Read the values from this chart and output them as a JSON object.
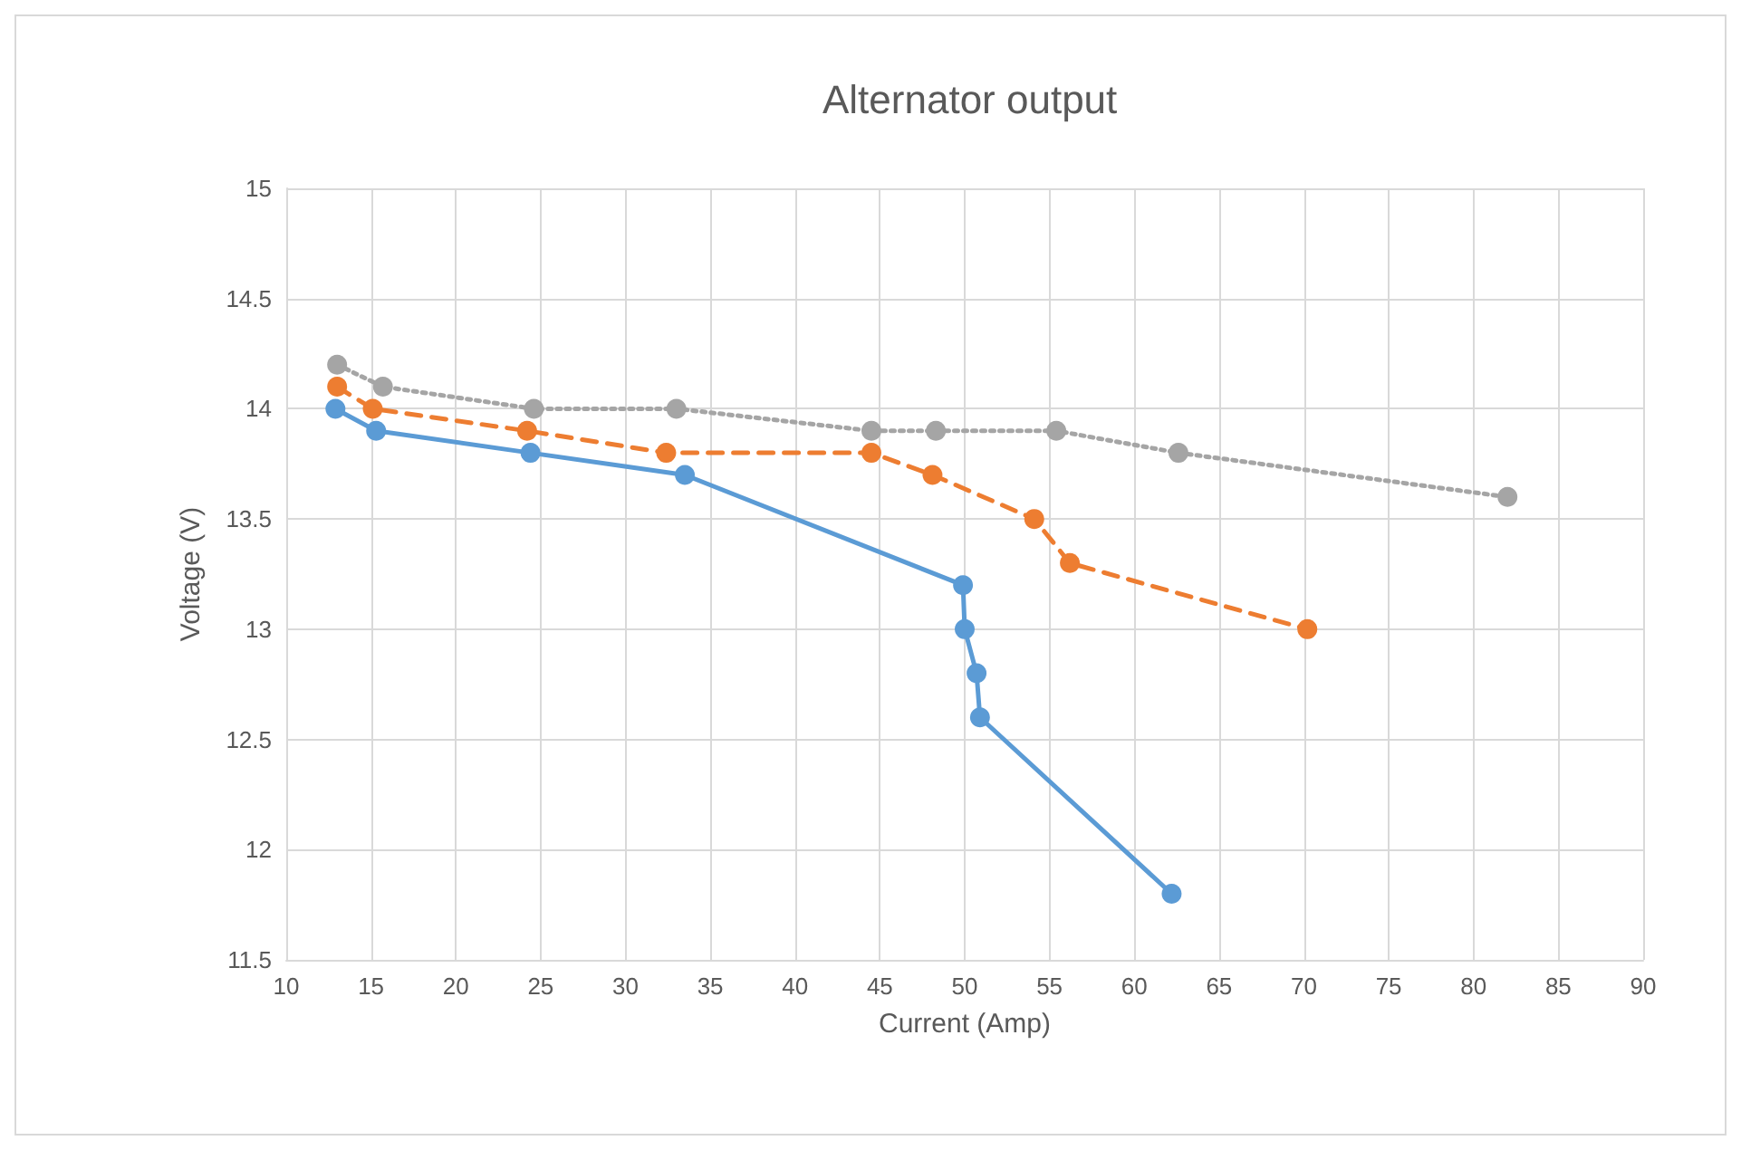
{
  "chart_data": {
    "type": "line",
    "title": "Alternator output",
    "xlabel": "Current (Amp)",
    "ylabel": "Voltage (V)",
    "xlim": [
      10,
      90
    ],
    "xticks": [
      10,
      15,
      20,
      25,
      30,
      35,
      40,
      45,
      50,
      55,
      60,
      65,
      70,
      75,
      80,
      85,
      90
    ],
    "ylim": [
      11.5,
      15
    ],
    "yticks": [
      11.5,
      12,
      12.5,
      13,
      13.5,
      14,
      14.5,
      15
    ],
    "grid": true,
    "marker": "circle",
    "series": [
      {
        "color": "#5b9bd5",
        "line_style": "solid",
        "x": [
          12.9,
          15.3,
          24.4,
          33.5,
          49.9,
          50.0,
          50.7,
          50.9,
          62.2
        ],
        "values": [
          14.0,
          13.9,
          13.8,
          13.7,
          13.2,
          13.0,
          12.8,
          12.6,
          11.8
        ]
      },
      {
        "color": "#ed7d31",
        "line_style": "dashed",
        "x": [
          13,
          15.1,
          24.2,
          32.4,
          44.5,
          48.1,
          54.1,
          56.2,
          70.2
        ],
        "values": [
          14.1,
          14.0,
          13.9,
          13.8,
          13.8,
          13.7,
          13.5,
          13.3,
          13.0
        ]
      },
      {
        "color": "#a5a5a5",
        "line_style": "dotted",
        "x": [
          13,
          15.7,
          24.6,
          33,
          44.5,
          48.3,
          55.4,
          62.6,
          82
        ],
        "values": [
          14.2,
          14.1,
          14.0,
          14.0,
          13.9,
          13.9,
          13.9,
          13.8,
          13.6
        ]
      }
    ]
  }
}
